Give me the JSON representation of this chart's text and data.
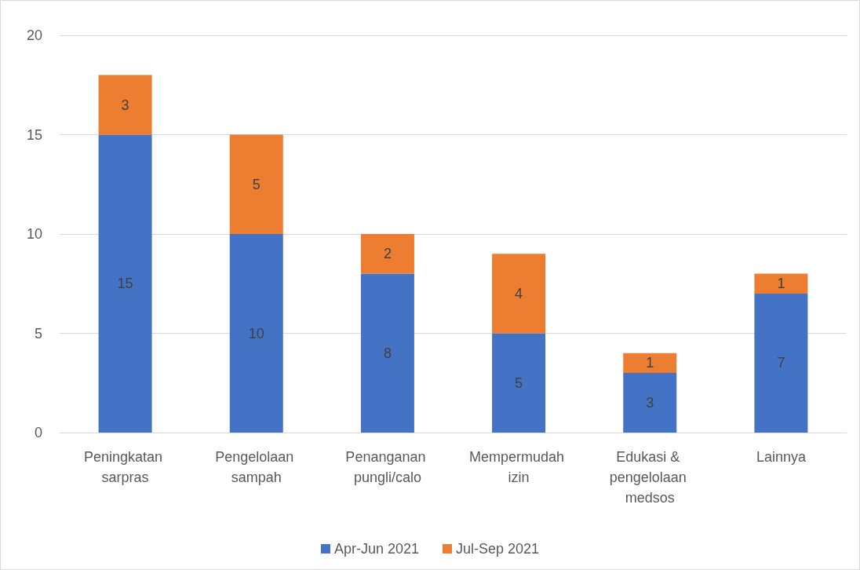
{
  "chart_data": {
    "type": "bar",
    "stacked": true,
    "categories": [
      "Peningkatan sarpras",
      "Pengelolaan sampah",
      "Penanganan pungli/calo",
      "Mempermudah izin",
      "Edukasi & pengelolaan medsos",
      "Lainnya"
    ],
    "series": [
      {
        "name": "Apr-Jun 2021",
        "color": "#4472c4",
        "values": [
          15,
          10,
          8,
          5,
          3,
          7
        ]
      },
      {
        "name": "Jul-Sep 2021",
        "color": "#ed7d31",
        "values": [
          3,
          5,
          2,
          4,
          1,
          1
        ]
      }
    ],
    "ylim": [
      0,
      20
    ],
    "yticks": [
      0,
      5,
      10,
      15,
      20
    ],
    "grid": "y",
    "legend": "bottom",
    "data_labels": true
  }
}
